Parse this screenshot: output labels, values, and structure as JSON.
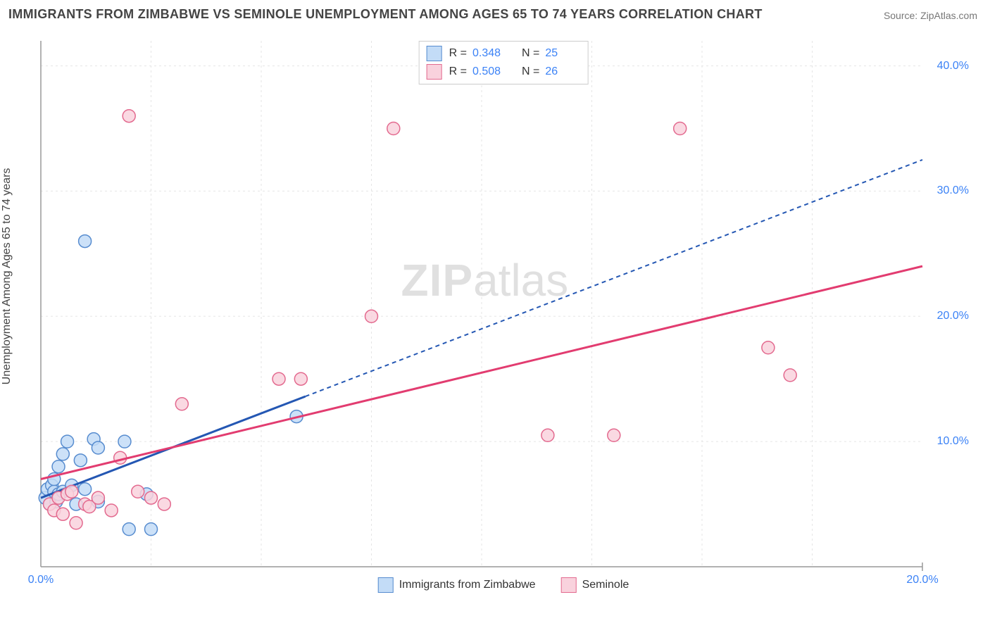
{
  "title": "IMMIGRANTS FROM ZIMBABWE VS SEMINOLE UNEMPLOYMENT AMONG AGES 65 TO 74 YEARS CORRELATION CHART",
  "source": "Source: ZipAtlas.com",
  "y_axis_label": "Unemployment Among Ages 65 to 74 years",
  "watermark_a": "ZIP",
  "watermark_b": "atlas",
  "chart": {
    "type": "scatter",
    "xlim": [
      0,
      20
    ],
    "ylim": [
      0,
      42
    ],
    "x_ticks": [
      0,
      20
    ],
    "x_tick_labels": [
      "0.0%",
      "20.0%"
    ],
    "y_ticks": [
      10,
      20,
      30,
      40
    ],
    "y_tick_labels": [
      "10.0%",
      "20.0%",
      "30.0%",
      "40.0%"
    ],
    "grid_color": "#e5e5e5",
    "axis_color": "#999999",
    "tick_label_color": "#3b82f6",
    "background": "#ffffff",
    "series": [
      {
        "name": "Immigrants from Zimbabwe",
        "fill": "#c3dcf7",
        "stroke": "#578ccf",
        "trend_color": "#2457b3",
        "trend_dash": "6 5",
        "trend_solid_until_x": 6.0,
        "R": "0.348",
        "N": "25",
        "trend": {
          "x1": 0,
          "y1": 5.5,
          "x2": 20,
          "y2": 32.5
        },
        "points": [
          [
            0.1,
            5.5
          ],
          [
            0.15,
            6.2
          ],
          [
            0.2,
            5.0
          ],
          [
            0.25,
            6.5
          ],
          [
            0.3,
            6.0
          ],
          [
            0.3,
            7.0
          ],
          [
            0.35,
            5.2
          ],
          [
            0.4,
            5.8
          ],
          [
            0.4,
            8.0
          ],
          [
            0.5,
            9.0
          ],
          [
            0.5,
            6.0
          ],
          [
            0.6,
            10.0
          ],
          [
            0.7,
            6.5
          ],
          [
            0.8,
            5.0
          ],
          [
            0.9,
            8.5
          ],
          [
            1.0,
            6.2
          ],
          [
            1.2,
            10.2
          ],
          [
            1.3,
            5.2
          ],
          [
            1.3,
            9.5
          ],
          [
            1.9,
            10.0
          ],
          [
            2.0,
            3.0
          ],
          [
            2.4,
            5.8
          ],
          [
            2.5,
            3.0
          ],
          [
            5.8,
            12.0
          ],
          [
            1.0,
            26.0
          ]
        ]
      },
      {
        "name": "Seminole",
        "fill": "#f9d2dd",
        "stroke": "#e36a8f",
        "trend_color": "#e23c70",
        "trend_dash": "",
        "trend_solid_until_x": 20,
        "R": "0.508",
        "N": "26",
        "trend": {
          "x1": 0,
          "y1": 7.0,
          "x2": 20,
          "y2": 24.0
        },
        "points": [
          [
            0.2,
            5.0
          ],
          [
            0.3,
            4.5
          ],
          [
            0.4,
            5.5
          ],
          [
            0.5,
            4.2
          ],
          [
            0.6,
            5.8
          ],
          [
            0.7,
            6.0
          ],
          [
            0.8,
            3.5
          ],
          [
            1.0,
            5.0
          ],
          [
            1.1,
            4.8
          ],
          [
            1.3,
            5.5
          ],
          [
            1.6,
            4.5
          ],
          [
            1.8,
            8.7
          ],
          [
            2.2,
            6.0
          ],
          [
            2.5,
            5.5
          ],
          [
            2.8,
            5.0
          ],
          [
            3.2,
            13.0
          ],
          [
            5.4,
            15.0
          ],
          [
            5.9,
            15.0
          ],
          [
            7.5,
            20.0
          ],
          [
            8.0,
            35.0
          ],
          [
            11.5,
            10.5
          ],
          [
            13.0,
            10.5
          ],
          [
            14.5,
            35.0
          ],
          [
            16.5,
            17.5
          ],
          [
            17.0,
            15.3
          ],
          [
            2.0,
            36.0
          ]
        ]
      }
    ]
  },
  "legend_bottom": [
    {
      "label": "Immigrants from Zimbabwe",
      "fill": "#c3dcf7",
      "stroke": "#578ccf"
    },
    {
      "label": "Seminole",
      "fill": "#f9d2dd",
      "stroke": "#e36a8f"
    }
  ]
}
